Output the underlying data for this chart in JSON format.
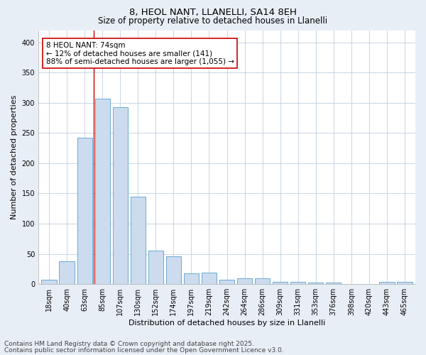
{
  "title1": "8, HEOL NANT, LLANELLI, SA14 8EH",
  "title2": "Size of property relative to detached houses in Llanelli",
  "xlabel": "Distribution of detached houses by size in Llanelli",
  "ylabel": "Number of detached properties",
  "categories": [
    "18sqm",
    "40sqm",
    "63sqm",
    "85sqm",
    "107sqm",
    "130sqm",
    "152sqm",
    "174sqm",
    "197sqm",
    "219sqm",
    "242sqm",
    "264sqm",
    "286sqm",
    "309sqm",
    "331sqm",
    "353sqm",
    "376sqm",
    "398sqm",
    "420sqm",
    "443sqm",
    "465sqm"
  ],
  "values": [
    7,
    38,
    242,
    307,
    293,
    145,
    55,
    46,
    18,
    19,
    7,
    10,
    10,
    4,
    4,
    3,
    3,
    0,
    0,
    4,
    4
  ],
  "bar_color": "#ccdcee",
  "bar_edge_color": "#6aaad4",
  "bar_edge_width": 0.7,
  "grid_color": "#c0d0e0",
  "background_color": "#e8eef6",
  "plot_bg_color": "#ffffff",
  "red_line_x": 2.5,
  "annotation_line1": "8 HEOL NANT: 74sqm",
  "annotation_line2": "← 12% of detached houses are smaller (141)",
  "annotation_line3": "88% of semi-detached houses are larger (1,055) →",
  "annotation_box_color": "#ffffff",
  "annotation_box_edge": "#cc0000",
  "footnote1": "Contains HM Land Registry data © Crown copyright and database right 2025.",
  "footnote2": "Contains public sector information licensed under the Open Government Licence v3.0.",
  "ylim": [
    0,
    420
  ],
  "yticks": [
    0,
    50,
    100,
    150,
    200,
    250,
    300,
    350,
    400
  ],
  "title_fontsize": 9.5,
  "subtitle_fontsize": 8.5,
  "axis_label_fontsize": 8,
  "tick_fontsize": 7,
  "annotation_fontsize": 7.5,
  "footnote_fontsize": 6.5
}
